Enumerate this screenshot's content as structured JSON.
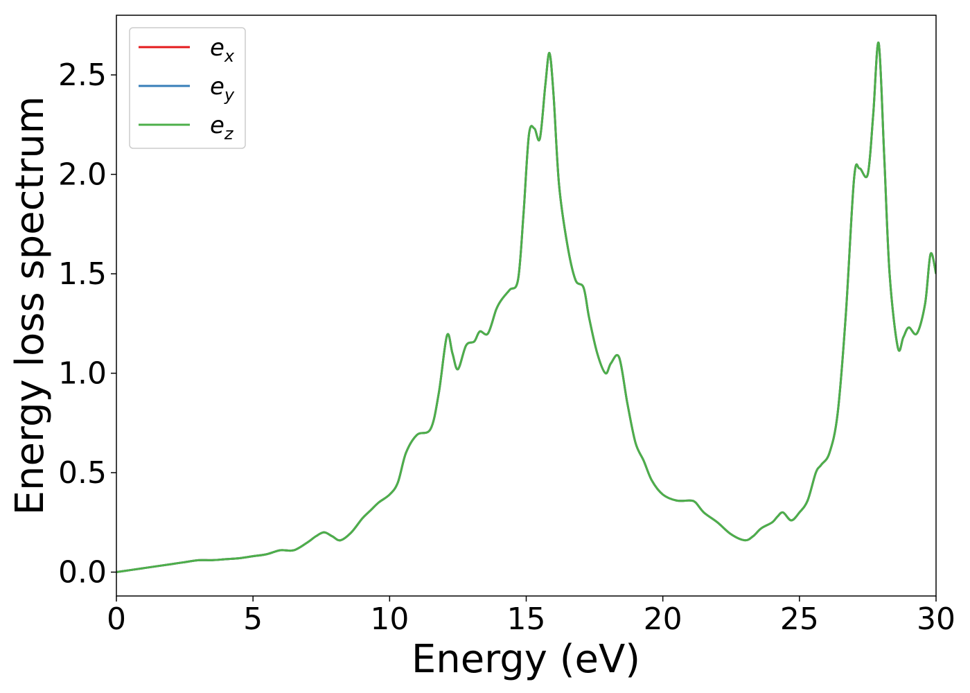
{
  "chart_data": {
    "type": "line",
    "title": "",
    "xlabel": "Energy (eV)",
    "ylabel": "Energy loss spectrum",
    "xlim": [
      0,
      30
    ],
    "ylim": [
      -0.12,
      2.8
    ],
    "xticks": [
      "0",
      "5",
      "10",
      "15",
      "20",
      "25",
      "30"
    ],
    "yticks": [
      "0.0",
      "0.5",
      "1.0",
      "1.5",
      "2.0",
      "2.5"
    ],
    "grid": false,
    "legend": {
      "placement": "top-left",
      "entries": [
        {
          "base": "e",
          "sub": "x",
          "color": "#e41a1c"
        },
        {
          "base": "e",
          "sub": "y",
          "color": "#377eb8"
        },
        {
          "base": "e",
          "sub": "z",
          "color": "#4daf4a"
        }
      ]
    },
    "x": [
      0,
      0.5,
      1.0,
      1.5,
      2.0,
      2.5,
      3.0,
      3.5,
      4.0,
      4.5,
      5.0,
      5.5,
      6.0,
      6.5,
      7.0,
      7.3,
      7.6,
      7.9,
      8.2,
      8.6,
      9.0,
      9.3,
      9.6,
      10.0,
      10.3,
      10.6,
      11.0,
      11.5,
      11.8,
      12.1,
      12.3,
      12.5,
      12.8,
      13.1,
      13.3,
      13.6,
      13.9,
      14.1,
      14.4,
      14.7,
      14.9,
      15.1,
      15.3,
      15.5,
      15.7,
      15.85,
      16.0,
      16.2,
      16.5,
      16.8,
      17.1,
      17.3,
      17.6,
      17.9,
      18.1,
      18.4,
      18.7,
      19.0,
      19.3,
      19.6,
      20.0,
      20.5,
      21.0,
      21.2,
      21.5,
      22.0,
      22.5,
      23.0,
      23.3,
      23.6,
      24.0,
      24.2,
      24.4,
      24.7,
      25.0,
      25.3,
      25.6,
      25.8,
      26.1,
      26.4,
      26.7,
      27.0,
      27.2,
      27.5,
      27.7,
      27.9,
      28.1,
      28.3,
      28.6,
      28.8,
      29.0,
      29.3,
      29.6,
      29.8,
      30.0
    ],
    "series": [
      {
        "name": "e_x",
        "color": "#e41a1c",
        "values": [
          0.0,
          0.01,
          0.02,
          0.03,
          0.04,
          0.05,
          0.06,
          0.06,
          0.065,
          0.07,
          0.08,
          0.09,
          0.11,
          0.11,
          0.15,
          0.18,
          0.2,
          0.18,
          0.16,
          0.2,
          0.27,
          0.31,
          0.35,
          0.39,
          0.45,
          0.6,
          0.69,
          0.72,
          0.9,
          1.19,
          1.1,
          1.02,
          1.14,
          1.16,
          1.21,
          1.2,
          1.32,
          1.37,
          1.42,
          1.47,
          1.8,
          2.2,
          2.23,
          2.18,
          2.45,
          2.61,
          2.4,
          1.95,
          1.65,
          1.47,
          1.43,
          1.28,
          1.1,
          1.0,
          1.05,
          1.08,
          0.85,
          0.65,
          0.56,
          0.46,
          0.39,
          0.36,
          0.36,
          0.35,
          0.3,
          0.25,
          0.19,
          0.16,
          0.18,
          0.22,
          0.25,
          0.28,
          0.3,
          0.26,
          0.3,
          0.36,
          0.5,
          0.54,
          0.6,
          0.8,
          1.3,
          1.98,
          2.03,
          2.0,
          2.3,
          2.66,
          2.1,
          1.5,
          1.13,
          1.18,
          1.23,
          1.2,
          1.35,
          1.6,
          1.5
        ]
      },
      {
        "name": "e_y",
        "color": "#377eb8",
        "values": [
          0.0,
          0.01,
          0.02,
          0.03,
          0.04,
          0.05,
          0.06,
          0.06,
          0.065,
          0.07,
          0.08,
          0.09,
          0.11,
          0.11,
          0.15,
          0.18,
          0.2,
          0.18,
          0.16,
          0.2,
          0.27,
          0.31,
          0.35,
          0.39,
          0.45,
          0.6,
          0.69,
          0.72,
          0.9,
          1.19,
          1.1,
          1.02,
          1.14,
          1.16,
          1.21,
          1.2,
          1.32,
          1.37,
          1.42,
          1.47,
          1.8,
          2.2,
          2.23,
          2.18,
          2.45,
          2.61,
          2.4,
          1.95,
          1.65,
          1.47,
          1.43,
          1.28,
          1.1,
          1.0,
          1.05,
          1.08,
          0.85,
          0.65,
          0.56,
          0.46,
          0.39,
          0.36,
          0.36,
          0.35,
          0.3,
          0.25,
          0.19,
          0.16,
          0.18,
          0.22,
          0.25,
          0.28,
          0.3,
          0.26,
          0.3,
          0.36,
          0.5,
          0.54,
          0.6,
          0.8,
          1.3,
          1.98,
          2.03,
          2.0,
          2.3,
          2.66,
          2.1,
          1.5,
          1.13,
          1.18,
          1.23,
          1.2,
          1.35,
          1.6,
          1.5
        ]
      },
      {
        "name": "e_z",
        "color": "#4daf4a",
        "values": [
          0.0,
          0.01,
          0.02,
          0.03,
          0.04,
          0.05,
          0.06,
          0.06,
          0.065,
          0.07,
          0.08,
          0.09,
          0.11,
          0.11,
          0.15,
          0.18,
          0.2,
          0.18,
          0.16,
          0.2,
          0.27,
          0.31,
          0.35,
          0.39,
          0.45,
          0.6,
          0.69,
          0.72,
          0.9,
          1.19,
          1.1,
          1.02,
          1.14,
          1.16,
          1.21,
          1.2,
          1.32,
          1.37,
          1.42,
          1.47,
          1.8,
          2.2,
          2.23,
          2.18,
          2.45,
          2.61,
          2.4,
          1.95,
          1.65,
          1.47,
          1.43,
          1.28,
          1.1,
          1.0,
          1.05,
          1.08,
          0.85,
          0.65,
          0.56,
          0.46,
          0.39,
          0.36,
          0.36,
          0.35,
          0.3,
          0.25,
          0.19,
          0.16,
          0.18,
          0.22,
          0.25,
          0.28,
          0.3,
          0.26,
          0.3,
          0.36,
          0.5,
          0.54,
          0.6,
          0.8,
          1.3,
          1.98,
          2.03,
          2.0,
          2.3,
          2.66,
          2.1,
          1.5,
          1.13,
          1.18,
          1.23,
          1.2,
          1.35,
          1.6,
          1.5
        ]
      }
    ]
  }
}
